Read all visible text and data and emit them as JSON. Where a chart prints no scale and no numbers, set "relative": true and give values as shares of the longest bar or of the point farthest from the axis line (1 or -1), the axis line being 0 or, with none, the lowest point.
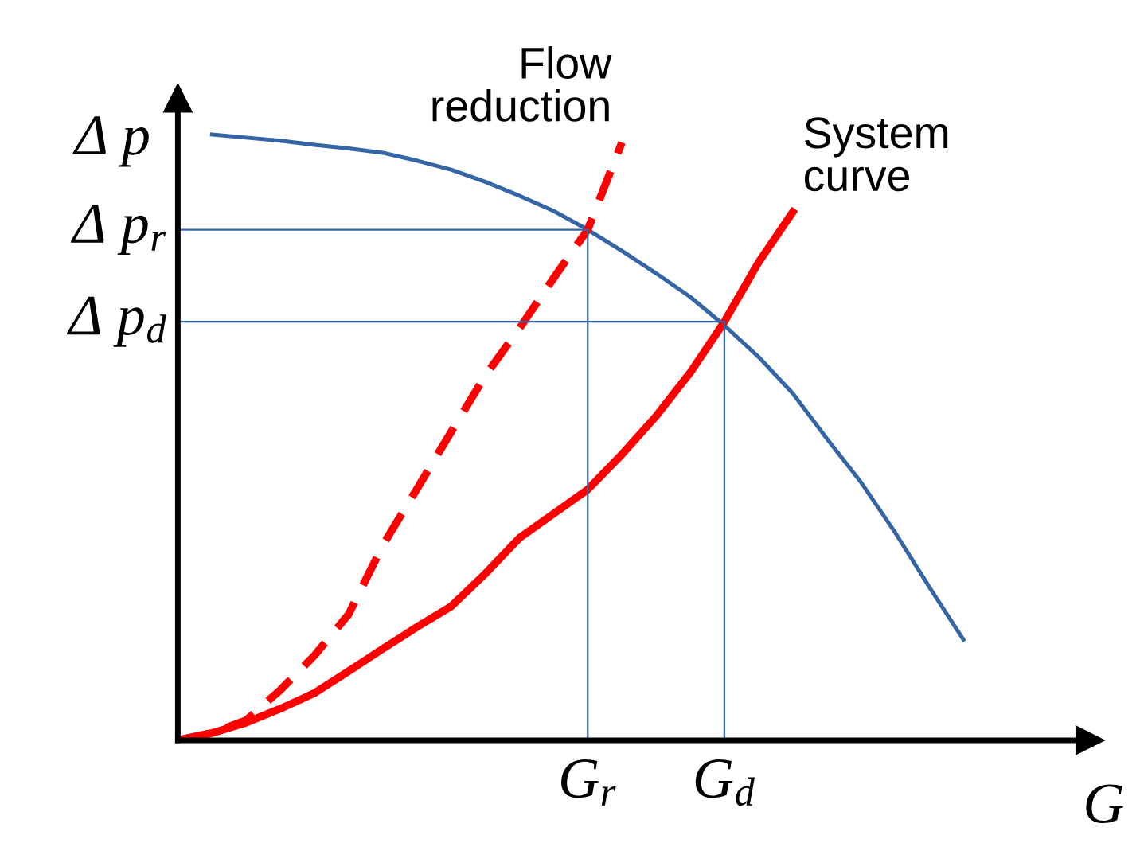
{
  "chart_data": {
    "type": "line",
    "relative": true,
    "xlabel": "G",
    "ylabel": "Δ p",
    "categories": [
      null,
      null,
      null,
      null,
      null,
      null,
      null,
      null,
      null,
      null,
      null,
      null,
      "G$_{r}$",
      null,
      null,
      null,
      "G$_{d}$",
      null,
      null,
      null,
      null,
      null,
      null,
      null,
      null,
      null,
      null
    ],
    "series": [
      {
        "color": "#3465a4",
        "values": [
          null,
          1.0,
          0.995,
          0.99,
          0.983,
          0.977,
          0.97,
          0.957,
          0.942,
          0.922,
          0.899,
          0.874,
          0.843,
          0.808,
          0.771,
          0.732,
          0.685,
          0.633,
          0.573,
          0.498,
          0.426,
          0.343,
          0.253,
          0.166,
          null,
          null,
          null
        ]
      },
      {
        "name": "Flow\nreduction",
        "color": "#ff0000",
        "line_style": "dashed",
        "values": [
          0,
          0.012,
          0.033,
          0.083,
          0.14,
          0.208,
          0.322,
          0.415,
          0.509,
          0.602,
          0.68,
          0.763,
          0.843,
          0.987,
          null,
          null,
          null,
          null,
          null,
          null,
          null,
          null,
          null,
          null,
          null,
          null,
          null
        ]
      },
      {
        "name": "System\ncurve",
        "color": "#ff0000",
        "line_style": "solid",
        "values": [
          0,
          0.012,
          0.029,
          0.052,
          0.078,
          0.114,
          0.151,
          0.187,
          0.221,
          0.275,
          0.334,
          0.374,
          0.414,
          0.472,
          0.535,
          0.607,
          0.691,
          0.789,
          0.872,
          null,
          null,
          null,
          null,
          null,
          null,
          null,
          null
        ]
      }
    ],
    "ref_lines": [
      {
        "axis": "x",
        "value": "G$_{r}$",
        "color": "#3465a4"
      },
      {
        "axis": "x",
        "value": "G$_{d}$",
        "color": "#3465a4"
      },
      {
        "axis": "y",
        "value": 0.843,
        "label": "Δ p$_{r}$",
        "color": "#3465a4"
      },
      {
        "axis": "y",
        "value": 0.691,
        "label": "Δ p$_{d}$",
        "color": "#3465a4"
      }
    ],
    "grid": false,
    "legend": false
  }
}
